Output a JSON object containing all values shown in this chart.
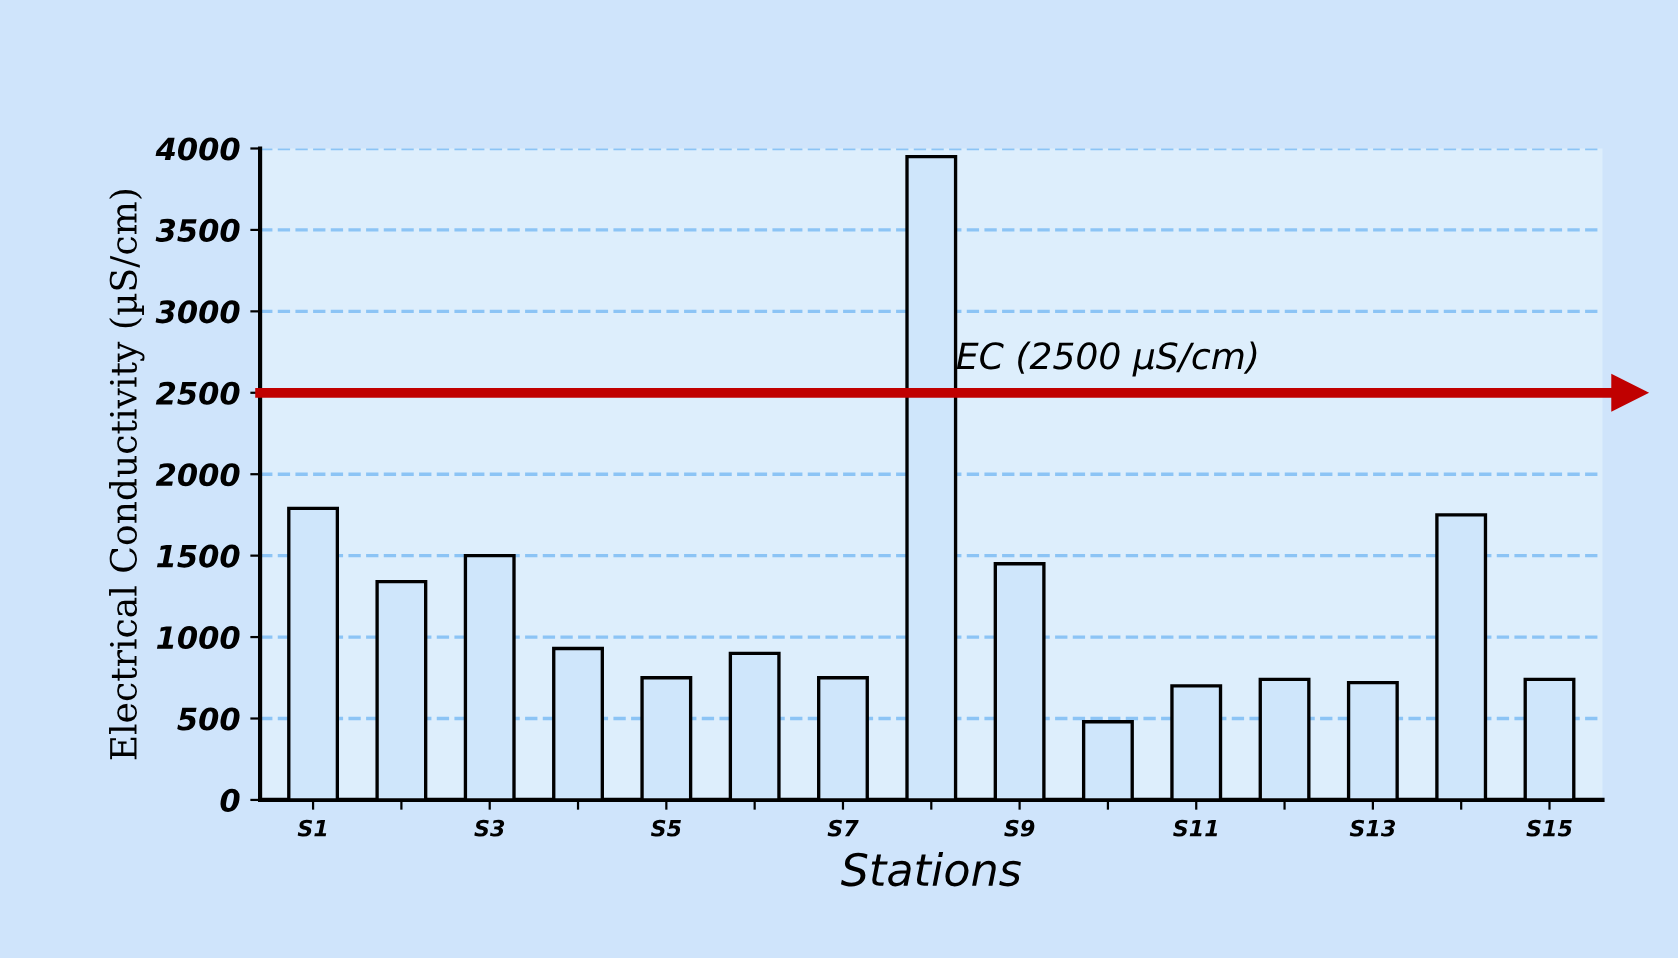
{
  "chart_data": {
    "type": "bar",
    "xlabel": "Stations",
    "ylabel": "Electrical Conductivity (µS/cm)",
    "categories": [
      "S1",
      null,
      "S3",
      null,
      "S5",
      null,
      "S7",
      null,
      "S9",
      null,
      "S11",
      null,
      "S13",
      null,
      "S15"
    ],
    "values": [
      1790,
      1340,
      1500,
      930,
      750,
      900,
      750,
      3950,
      1450,
      480,
      700,
      740,
      720,
      1750,
      740
    ],
    "color": "#cfe6fb",
    "ylim": [
      0,
      4000
    ],
    "yticks": [
      0,
      500,
      1000,
      1500,
      2000,
      2500,
      3000,
      3500,
      4000
    ],
    "grid": "y",
    "ref_lines": [
      {
        "axis": "y",
        "value": 2500,
        "label": "EC (2500 µS/cm)",
        "color": "#c00000"
      }
    ]
  }
}
